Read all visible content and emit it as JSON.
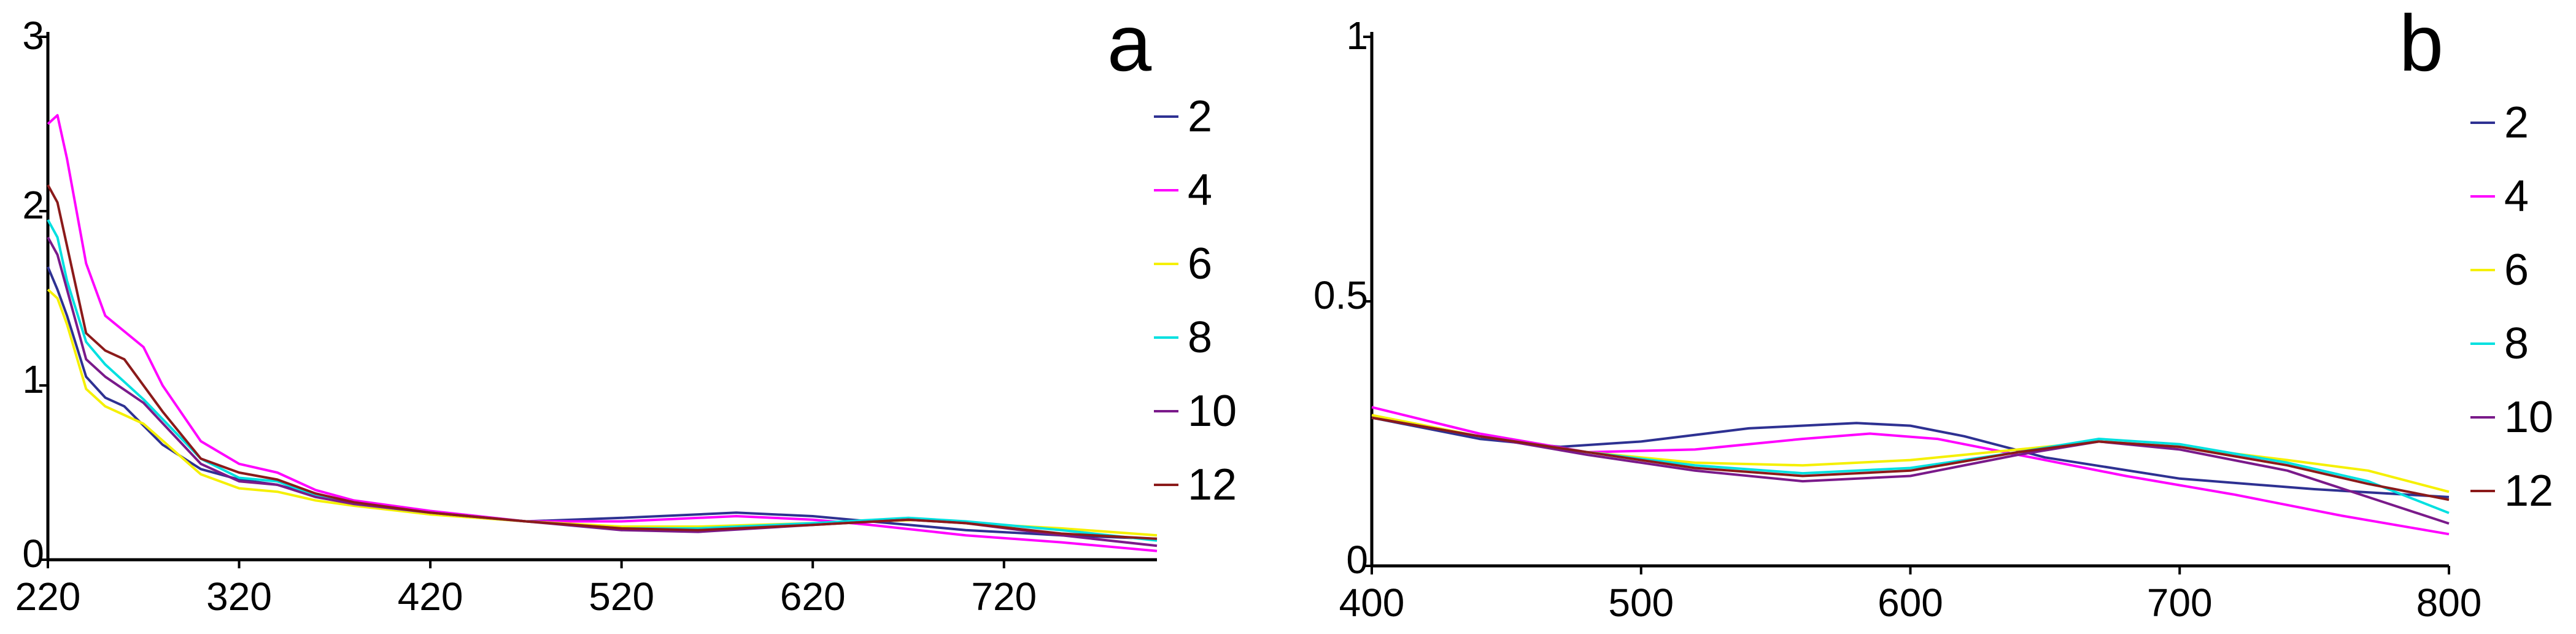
{
  "chart_data": [
    {
      "type": "line",
      "panel_label": "a",
      "xlim": [
        220,
        800
      ],
      "ylim": [
        0,
        3
      ],
      "x_ticks": [
        220,
        320,
        420,
        520,
        620,
        720
      ],
      "x_tick_labels": [
        "220",
        "320",
        "420",
        "520",
        "620",
        "720"
      ],
      "y_ticks": [
        0,
        1,
        2,
        3
      ],
      "y_tick_labels": [
        "0",
        "1",
        "2",
        "3"
      ],
      "legend_position": "right",
      "series": [
        {
          "name": "2",
          "color": "#2e3192",
          "points": [
            [
              220,
              1.68
            ],
            [
              225,
              1.55
            ],
            [
              230,
              1.4
            ],
            [
              240,
              1.05
            ],
            [
              250,
              0.93
            ],
            [
              260,
              0.88
            ],
            [
              280,
              0.66
            ],
            [
              300,
              0.52
            ],
            [
              320,
              0.46
            ],
            [
              340,
              0.43
            ],
            [
              360,
              0.37
            ],
            [
              380,
              0.33
            ],
            [
              420,
              0.27
            ],
            [
              470,
              0.22
            ],
            [
              520,
              0.24
            ],
            [
              580,
              0.27
            ],
            [
              620,
              0.25
            ],
            [
              650,
              0.22
            ],
            [
              700,
              0.17
            ],
            [
              750,
              0.14
            ],
            [
              800,
              0.12
            ]
          ]
        },
        {
          "name": "4",
          "color": "#ff00ff",
          "points": [
            [
              220,
              2.5
            ],
            [
              225,
              2.55
            ],
            [
              230,
              2.3
            ],
            [
              240,
              1.7
            ],
            [
              250,
              1.4
            ],
            [
              270,
              1.22
            ],
            [
              280,
              1.0
            ],
            [
              300,
              0.68
            ],
            [
              320,
              0.55
            ],
            [
              340,
              0.5
            ],
            [
              360,
              0.4
            ],
            [
              380,
              0.34
            ],
            [
              420,
              0.28
            ],
            [
              470,
              0.22
            ],
            [
              520,
              0.22
            ],
            [
              580,
              0.25
            ],
            [
              620,
              0.23
            ],
            [
              650,
              0.2
            ],
            [
              700,
              0.14
            ],
            [
              750,
              0.1
            ],
            [
              800,
              0.05
            ]
          ]
        },
        {
          "name": "6",
          "color": "#f5f000",
          "points": [
            [
              220,
              1.55
            ],
            [
              225,
              1.5
            ],
            [
              230,
              1.35
            ],
            [
              240,
              0.98
            ],
            [
              250,
              0.88
            ],
            [
              270,
              0.78
            ],
            [
              300,
              0.49
            ],
            [
              320,
              0.41
            ],
            [
              340,
              0.39
            ],
            [
              360,
              0.34
            ],
            [
              380,
              0.31
            ],
            [
              420,
              0.26
            ],
            [
              470,
              0.22
            ],
            [
              520,
              0.19
            ],
            [
              560,
              0.19
            ],
            [
              620,
              0.21
            ],
            [
              680,
              0.23
            ],
            [
              700,
              0.21
            ],
            [
              750,
              0.18
            ],
            [
              800,
              0.14
            ]
          ]
        },
        {
          "name": "8",
          "color": "#00e0e0",
          "points": [
            [
              220,
              1.95
            ],
            [
              225,
              1.85
            ],
            [
              230,
              1.6
            ],
            [
              240,
              1.25
            ],
            [
              250,
              1.12
            ],
            [
              270,
              0.92
            ],
            [
              300,
              0.58
            ],
            [
              320,
              0.47
            ],
            [
              340,
              0.45
            ],
            [
              360,
              0.37
            ],
            [
              380,
              0.32
            ],
            [
              420,
              0.27
            ],
            [
              470,
              0.22
            ],
            [
              520,
              0.18
            ],
            [
              560,
              0.18
            ],
            [
              620,
              0.21
            ],
            [
              670,
              0.24
            ],
            [
              700,
              0.22
            ],
            [
              750,
              0.17
            ],
            [
              800,
              0.11
            ]
          ]
        },
        {
          "name": "10",
          "color": "#7a1a8a",
          "points": [
            [
              220,
              1.85
            ],
            [
              225,
              1.75
            ],
            [
              230,
              1.55
            ],
            [
              240,
              1.15
            ],
            [
              250,
              1.05
            ],
            [
              270,
              0.9
            ],
            [
              300,
              0.55
            ],
            [
              320,
              0.45
            ],
            [
              340,
              0.43
            ],
            [
              360,
              0.36
            ],
            [
              380,
              0.32
            ],
            [
              420,
              0.27
            ],
            [
              470,
              0.22
            ],
            [
              520,
              0.17
            ],
            [
              560,
              0.16
            ],
            [
              620,
              0.2
            ],
            [
              670,
              0.23
            ],
            [
              700,
              0.21
            ],
            [
              750,
              0.14
            ],
            [
              800,
              0.08
            ]
          ]
        },
        {
          "name": "12",
          "color": "#8b1a1a",
          "points": [
            [
              220,
              2.15
            ],
            [
              225,
              2.05
            ],
            [
              230,
              1.8
            ],
            [
              240,
              1.3
            ],
            [
              250,
              1.2
            ],
            [
              260,
              1.15
            ],
            [
              280,
              0.85
            ],
            [
              300,
              0.58
            ],
            [
              320,
              0.5
            ],
            [
              340,
              0.46
            ],
            [
              360,
              0.38
            ],
            [
              380,
              0.33
            ],
            [
              420,
              0.27
            ],
            [
              470,
              0.22
            ],
            [
              520,
              0.18
            ],
            [
              560,
              0.17
            ],
            [
              620,
              0.2
            ],
            [
              670,
              0.23
            ],
            [
              700,
              0.21
            ],
            [
              750,
              0.15
            ],
            [
              800,
              0.12
            ]
          ]
        }
      ]
    },
    {
      "type": "line",
      "panel_label": "b",
      "xlim": [
        400,
        800
      ],
      "ylim": [
        0,
        1
      ],
      "x_ticks": [
        400,
        500,
        600,
        700,
        800
      ],
      "x_tick_labels": [
        "400",
        "500",
        "600",
        "700",
        "800"
      ],
      "y_ticks": [
        0,
        0.5,
        1
      ],
      "y_tick_labels": [
        "0",
        "0.5",
        "1"
      ],
      "legend_position": "right",
      "series": [
        {
          "name": "2",
          "color": "#2e3192",
          "points": [
            [
              400,
              0.28
            ],
            [
              440,
              0.24
            ],
            [
              470,
              0.225
            ],
            [
              500,
              0.235
            ],
            [
              540,
              0.26
            ],
            [
              580,
              0.27
            ],
            [
              600,
              0.265
            ],
            [
              620,
              0.245
            ],
            [
              650,
              0.205
            ],
            [
              700,
              0.165
            ],
            [
              750,
              0.145
            ],
            [
              800,
              0.13
            ]
          ]
        },
        {
          "name": "4",
          "color": "#ff00ff",
          "points": [
            [
              400,
              0.3
            ],
            [
              440,
              0.25
            ],
            [
              480,
              0.215
            ],
            [
              520,
              0.22
            ],
            [
              560,
              0.24
            ],
            [
              585,
              0.25
            ],
            [
              610,
              0.24
            ],
            [
              640,
              0.21
            ],
            [
              680,
              0.17
            ],
            [
              720,
              0.135
            ],
            [
              760,
              0.095
            ],
            [
              800,
              0.06
            ]
          ]
        },
        {
          "name": "6",
          "color": "#f5f000",
          "points": [
            [
              400,
              0.285
            ],
            [
              440,
              0.245
            ],
            [
              480,
              0.215
            ],
            [
              520,
              0.195
            ],
            [
              560,
              0.19
            ],
            [
              600,
              0.2
            ],
            [
              640,
              0.22
            ],
            [
              670,
              0.235
            ],
            [
              700,
              0.225
            ],
            [
              740,
              0.2
            ],
            [
              770,
              0.18
            ],
            [
              800,
              0.14
            ]
          ]
        },
        {
          "name": "8",
          "color": "#00e0e0",
          "points": [
            [
              400,
              0.28
            ],
            [
              440,
              0.245
            ],
            [
              480,
              0.215
            ],
            [
              520,
              0.19
            ],
            [
              560,
              0.175
            ],
            [
              600,
              0.185
            ],
            [
              640,
              0.215
            ],
            [
              670,
              0.24
            ],
            [
              700,
              0.23
            ],
            [
              740,
              0.195
            ],
            [
              770,
              0.16
            ],
            [
              800,
              0.1
            ]
          ]
        },
        {
          "name": "10",
          "color": "#7a1a8a",
          "points": [
            [
              400,
              0.28
            ],
            [
              440,
              0.245
            ],
            [
              480,
              0.21
            ],
            [
              520,
              0.18
            ],
            [
              560,
              0.16
            ],
            [
              600,
              0.17
            ],
            [
              640,
              0.21
            ],
            [
              670,
              0.235
            ],
            [
              700,
              0.22
            ],
            [
              740,
              0.18
            ],
            [
              770,
              0.13
            ],
            [
              800,
              0.08
            ]
          ]
        },
        {
          "name": "12",
          "color": "#8b1a1a",
          "points": [
            [
              400,
              0.28
            ],
            [
              440,
              0.245
            ],
            [
              480,
              0.215
            ],
            [
              520,
              0.185
            ],
            [
              560,
              0.17
            ],
            [
              600,
              0.18
            ],
            [
              640,
              0.215
            ],
            [
              670,
              0.235
            ],
            [
              700,
              0.225
            ],
            [
              740,
              0.19
            ],
            [
              770,
              0.155
            ],
            [
              800,
              0.125
            ]
          ]
        }
      ]
    }
  ]
}
